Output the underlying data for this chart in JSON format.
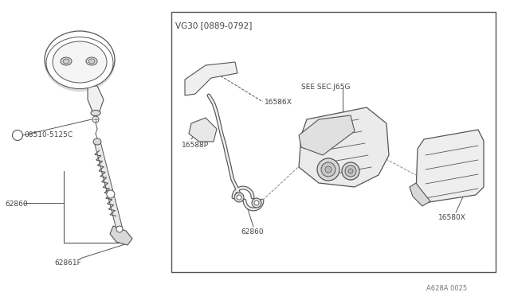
{
  "bg_color": "#ffffff",
  "border_color": "#555555",
  "line_color": "#555555",
  "text_color": "#444444",
  "box_label": "VG30 [0889-0792]",
  "bottom_code": "A628A 0025",
  "labels": {
    "08510_5125C": "08510-5125C",
    "62860_left": "62860",
    "62861F": "62861F",
    "16586X": "16586X",
    "16588P": "16588P",
    "62860_right": "62860",
    "16580X": "16580X",
    "SEE_SEC": "SEE SEC.J65G"
  },
  "fig_width": 6.4,
  "fig_height": 3.72,
  "dpi": 100
}
